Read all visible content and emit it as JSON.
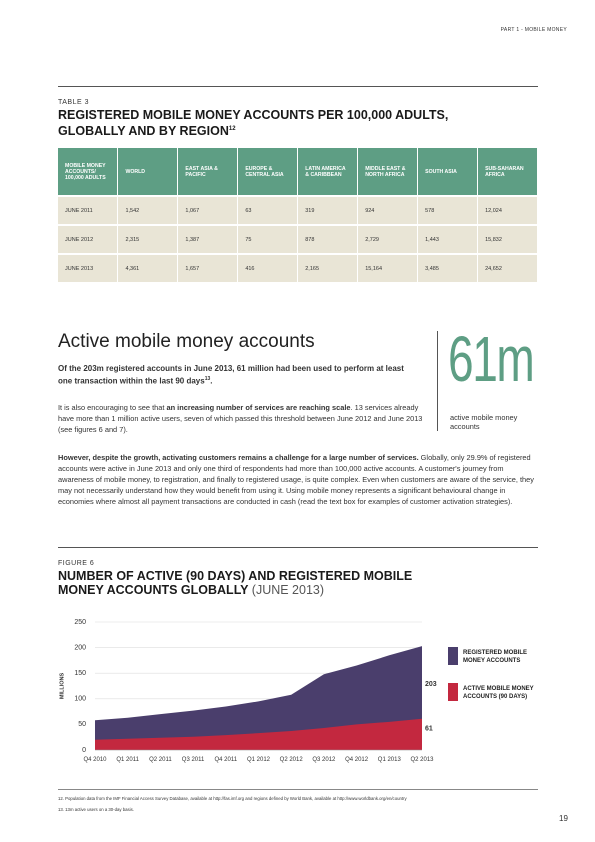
{
  "header": {
    "section": "PART 1 - MOBILE MONEY"
  },
  "table": {
    "label": "TABLE 3",
    "title": "REGISTERED MOBILE MONEY ACCOUNTS PER 100,000 ADULTS, GLOBALLY AND BY REGION",
    "title_ref": "12",
    "columns": [
      "MOBILE MONEY ACCOUNTS/ 100,000 ADULTS",
      "WORLD",
      "EAST ASIA & PACIFIC",
      "EUROPE & CENTRAL ASIA",
      "LATIN AMERICA & CARIBBEAN",
      "MIDDLE EAST & NORTH AFRICA",
      "SOUTH ASIA",
      "SUB-SAHARAN AFRICA"
    ],
    "rows": [
      [
        "JUNE 2011",
        "1,542",
        "1,067",
        "63",
        "319",
        "924",
        "578",
        "12,024"
      ],
      [
        "JUNE 2012",
        "2,315",
        "1,387",
        "75",
        "878",
        "2,729",
        "1,443",
        "15,832"
      ],
      [
        "JUNE 2013",
        "4,361",
        "1,657",
        "416",
        "2,165",
        "15,164",
        "3,485",
        "24,652"
      ]
    ]
  },
  "section": {
    "heading": "Active mobile money accounts",
    "callout": {
      "value": "61m",
      "caption": "active mobile money accounts"
    },
    "paragraph_1": {
      "bold": "Of the 203m registered accounts in June 2013, 61 million had been used to perform at least one transaction within the last 90 days",
      "ref": "13",
      "end": "."
    },
    "paragraph_2": {
      "before": "It is also encouraging to see that ",
      "bold": "an increasing number of services are reaching scale",
      "after": ". 13 services already have more than 1 million active users, seven of which passed this threshold between June 2012 and June 2013 (see figures 6 and 7)."
    },
    "paragraph_3": {
      "bold": "However, despite the growth, activating customers remains a challenge for a large number of services.",
      "after": " Globally, only 29.9% of registered accounts were active in June 2013 and only one third of respondents had more than 100,000 active accounts. A customer's journey from awareness of mobile money, to registration, and finally to registered usage, is quite complex. Even when customers are aware of the service, they may not necessarily understand how they would benefit from using it. Using mobile money represents a significant behavioural change in economies where almost all payment transactions are conducted in cash (read the text box for examples of customer activation strategies)."
    }
  },
  "chart_data": {
    "type": "area",
    "label": "FIGURE 6",
    "title": "NUMBER OF ACTIVE (90 DAYS) AND REGISTERED MOBILE MONEY ACCOUNTS GLOBALLY",
    "title_note": "(JUNE 2013)",
    "y_label": "MILLIONS",
    "categories": [
      "Q4 2010",
      "Q1 2011",
      "Q2 2011",
      "Q3 2011",
      "Q4 2011",
      "Q1 2012",
      "Q2 2012",
      "Q3 2012",
      "Q4 2012",
      "Q1 2013",
      "Q2 2013"
    ],
    "series": [
      {
        "name": "REGISTERED MOBILE MONEY ACCOUNTS",
        "color": "#4a3e6c",
        "values": [
          58,
          63,
          70,
          77,
          85,
          95,
          108,
          148,
          165,
          185,
          203
        ]
      },
      {
        "name": "ACTIVE MOBILE MONEY ACCOUNTS (90 DAYS)",
        "color": "#c3283f",
        "values": [
          20,
          22,
          24,
          26,
          29,
          33,
          37,
          43,
          50,
          55,
          61
        ]
      }
    ],
    "ylim": [
      0,
      250
    ],
    "yticks": [
      0,
      50,
      100,
      150,
      200,
      250
    ],
    "grid": true
  },
  "footnotes": [
    "12. Population data from the IMF Financial Access Survey Database, available at http://fas.imf.org and regions defined by World Bank, available at http://www.worldbank.org/en/country",
    "13. 13m active users on a 30-day basis."
  ],
  "page_number": "19"
}
